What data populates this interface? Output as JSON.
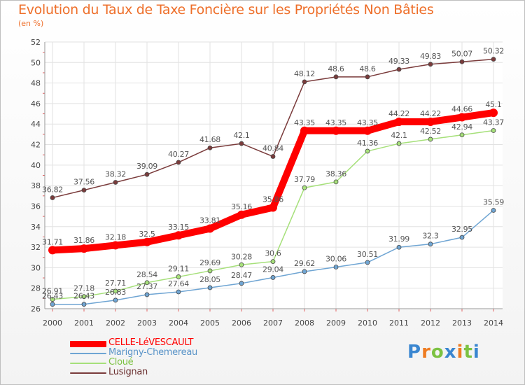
{
  "chart_data": {
    "type": "line",
    "title": "Evolution du Taux de Taxe Foncière sur les Propriétés Non Bâties",
    "subtitle": "(en %)",
    "categories": [
      "2000",
      "2001",
      "2002",
      "2003",
      "2004",
      "2005",
      "2006",
      "2007",
      "2008",
      "2009",
      "2010",
      "2011",
      "2012",
      "2013",
      "2014"
    ],
    "ylim": [
      26,
      52
    ],
    "yticks": [
      "26",
      "28",
      "30",
      "32",
      "34",
      "36",
      "38",
      "40",
      "42",
      "44",
      "46",
      "48",
      "50",
      "52"
    ],
    "grid": true,
    "series": [
      {
        "name": "CELLE-LéVESCAULT",
        "color": "#ff0000",
        "values": [
          31.71,
          31.86,
          32.18,
          32.5,
          33.15,
          33.81,
          35.16,
          35.86,
          43.35,
          43.35,
          43.35,
          44.22,
          44.22,
          44.66,
          45.1
        ],
        "labels": [
          "31.71",
          "31.86",
          "32.18",
          "32.5",
          "33.15",
          "33.81",
          "35.16",
          "35.86",
          "43.35",
          "43.35",
          "43.35",
          "44.22",
          "44.22",
          "44.66",
          "45.1"
        ]
      },
      {
        "name": "Marigny-Chemereau",
        "color": "#6fa5d3",
        "values": [
          26.43,
          26.43,
          26.83,
          27.37,
          27.64,
          28.05,
          28.47,
          29.04,
          29.62,
          30.06,
          30.51,
          31.99,
          32.3,
          32.95,
          35.59
        ],
        "labels": [
          "26.43",
          "26.43",
          "26.83",
          "27.37",
          "27.64",
          "28.05",
          "28.47",
          "29.04",
          "29.62",
          "30.06",
          "30.51",
          "31.99",
          "32.3",
          "32.95",
          "35.59"
        ]
      },
      {
        "name": "Cloué",
        "color": "#a6e07a",
        "values": [
          26.91,
          27.18,
          27.71,
          28.54,
          29.11,
          29.69,
          30.28,
          30.6,
          37.79,
          38.36,
          41.36,
          42.1,
          42.52,
          42.94,
          43.37
        ],
        "labels": [
          "26.91",
          "27.18",
          "27.71",
          "28.54",
          "29.11",
          "29.69",
          "30.28",
          "30.6",
          "37.79",
          "38.36",
          "41.36",
          "42.1",
          "42.52",
          "42.94",
          "43.37"
        ]
      },
      {
        "name": "Lusignan",
        "color": "#7a3b3b",
        "values": [
          36.82,
          37.56,
          38.32,
          39.09,
          40.27,
          41.68,
          42.1,
          40.84,
          48.12,
          48.6,
          48.6,
          49.33,
          49.83,
          50.07,
          50.32
        ],
        "labels": [
          "36.82",
          "37.56",
          "38.32",
          "39.09",
          "40.27",
          "41.68",
          "42.1",
          "40.84",
          "48.12",
          "48.6",
          "48.6",
          "49.33",
          "49.83",
          "50.07",
          "50.32"
        ]
      }
    ],
    "legend_position": "bottom-left"
  },
  "logo": {
    "text": "Proxiti",
    "letters": [
      "P",
      "r",
      "o",
      "x",
      "i",
      "t",
      "i"
    ],
    "colors": [
      "#3a86d0",
      "#ee7c22",
      "#7cc242",
      "#3a86d0",
      "#ee7c22",
      "#7cc242",
      "#3a86d0"
    ]
  }
}
